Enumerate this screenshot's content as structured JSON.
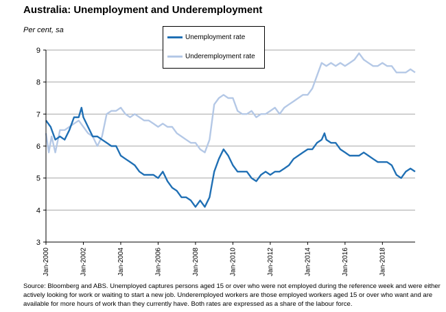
{
  "page": {
    "title": "Australia: Unemployment and Underemployment",
    "unit_label": "Per cent, sa",
    "source": "Source: Bloomberg and ABS.  Unemployed captures persons aged 15 or over who were not employed during the reference week and were either actively looking for work or waiting to start a new job.  Underemployed workers are those employed workers aged 15 or over who want and are available for more hours of work than they currently have.  Both rates are expressed as a share of the labour force."
  },
  "chart_data": {
    "type": "line",
    "title": "Australia: Unemployment and Underemployment",
    "ylabel": "Per cent, sa",
    "ylim": [
      3,
      9
    ],
    "yticks": [
      3,
      4,
      5,
      6,
      7,
      8,
      9
    ],
    "xlim": [
      2000.0,
      2019.75
    ],
    "xticks": [
      {
        "x": 2000,
        "label": "Jan-2000"
      },
      {
        "x": 2002,
        "label": "Jan-2002"
      },
      {
        "x": 2004,
        "label": "Jan-2004"
      },
      {
        "x": 2006,
        "label": "Jan-2006"
      },
      {
        "x": 2008,
        "label": "Jan-2008"
      },
      {
        "x": 2010,
        "label": "Jan-2010"
      },
      {
        "x": 2012,
        "label": "Jan-2012"
      },
      {
        "x": 2014,
        "label": "Jan-2014"
      },
      {
        "x": 2016,
        "label": "Jan-2016"
      },
      {
        "x": 2018,
        "label": "Jan-2018"
      }
    ],
    "grid": true,
    "legend_position": "top-center",
    "series": [
      {
        "name": "Unemployment rate",
        "color": "#1f6fb4",
        "width": 2.4,
        "points": [
          [
            2000.0,
            6.8
          ],
          [
            2000.25,
            6.6
          ],
          [
            2000.5,
            6.2
          ],
          [
            2000.75,
            6.3
          ],
          [
            2001.0,
            6.2
          ],
          [
            2001.25,
            6.5
          ],
          [
            2001.5,
            6.9
          ],
          [
            2001.75,
            6.9
          ],
          [
            2001.9,
            7.2
          ],
          [
            2002.0,
            6.9
          ],
          [
            2002.25,
            6.6
          ],
          [
            2002.5,
            6.3
          ],
          [
            2002.75,
            6.3
          ],
          [
            2003.0,
            6.2
          ],
          [
            2003.25,
            6.1
          ],
          [
            2003.5,
            6.0
          ],
          [
            2003.75,
            6.0
          ],
          [
            2004.0,
            5.7
          ],
          [
            2004.25,
            5.6
          ],
          [
            2004.5,
            5.5
          ],
          [
            2004.75,
            5.4
          ],
          [
            2005.0,
            5.2
          ],
          [
            2005.25,
            5.1
          ],
          [
            2005.5,
            5.1
          ],
          [
            2005.75,
            5.1
          ],
          [
            2006.0,
            5.0
          ],
          [
            2006.25,
            5.2
          ],
          [
            2006.5,
            4.9
          ],
          [
            2006.75,
            4.7
          ],
          [
            2007.0,
            4.6
          ],
          [
            2007.25,
            4.4
          ],
          [
            2007.5,
            4.4
          ],
          [
            2007.75,
            4.3
          ],
          [
            2008.0,
            4.1
          ],
          [
            2008.25,
            4.3
          ],
          [
            2008.5,
            4.1
          ],
          [
            2008.75,
            4.4
          ],
          [
            2009.0,
            5.2
          ],
          [
            2009.25,
            5.6
          ],
          [
            2009.5,
            5.9
          ],
          [
            2009.75,
            5.7
          ],
          [
            2010.0,
            5.4
          ],
          [
            2010.25,
            5.2
          ],
          [
            2010.5,
            5.2
          ],
          [
            2010.75,
            5.2
          ],
          [
            2011.0,
            5.0
          ],
          [
            2011.25,
            4.9
          ],
          [
            2011.5,
            5.1
          ],
          [
            2011.75,
            5.2
          ],
          [
            2012.0,
            5.1
          ],
          [
            2012.25,
            5.2
          ],
          [
            2012.5,
            5.2
          ],
          [
            2012.75,
            5.3
          ],
          [
            2013.0,
            5.4
          ],
          [
            2013.25,
            5.6
          ],
          [
            2013.5,
            5.7
          ],
          [
            2013.75,
            5.8
          ],
          [
            2014.0,
            5.9
          ],
          [
            2014.25,
            5.9
          ],
          [
            2014.5,
            6.1
          ],
          [
            2014.75,
            6.2
          ],
          [
            2014.9,
            6.4
          ],
          [
            2015.0,
            6.2
          ],
          [
            2015.25,
            6.1
          ],
          [
            2015.5,
            6.1
          ],
          [
            2015.75,
            5.9
          ],
          [
            2016.0,
            5.8
          ],
          [
            2016.25,
            5.7
          ],
          [
            2016.5,
            5.7
          ],
          [
            2016.75,
            5.7
          ],
          [
            2017.0,
            5.8
          ],
          [
            2017.25,
            5.7
          ],
          [
            2017.5,
            5.6
          ],
          [
            2017.75,
            5.5
          ],
          [
            2018.0,
            5.5
          ],
          [
            2018.25,
            5.5
          ],
          [
            2018.5,
            5.4
          ],
          [
            2018.75,
            5.1
          ],
          [
            2019.0,
            5.0
          ],
          [
            2019.25,
            5.2
          ],
          [
            2019.5,
            5.3
          ],
          [
            2019.75,
            5.2
          ]
        ]
      },
      {
        "name": "Underemployment rate",
        "color": "#b4c8e6",
        "width": 2.4,
        "points": [
          [
            2000.0,
            6.4
          ],
          [
            2000.15,
            5.8
          ],
          [
            2000.3,
            6.3
          ],
          [
            2000.5,
            5.8
          ],
          [
            2000.75,
            6.5
          ],
          [
            2001.0,
            6.5
          ],
          [
            2001.25,
            6.6
          ],
          [
            2001.5,
            6.7
          ],
          [
            2001.75,
            6.8
          ],
          [
            2002.0,
            6.6
          ],
          [
            2002.25,
            6.4
          ],
          [
            2002.5,
            6.3
          ],
          [
            2002.75,
            6.0
          ],
          [
            2003.0,
            6.3
          ],
          [
            2003.25,
            7.0
          ],
          [
            2003.5,
            7.1
          ],
          [
            2003.75,
            7.1
          ],
          [
            2004.0,
            7.2
          ],
          [
            2004.25,
            7.0
          ],
          [
            2004.5,
            6.9
          ],
          [
            2004.75,
            7.0
          ],
          [
            2005.0,
            6.9
          ],
          [
            2005.25,
            6.8
          ],
          [
            2005.5,
            6.8
          ],
          [
            2005.75,
            6.7
          ],
          [
            2006.0,
            6.6
          ],
          [
            2006.25,
            6.7
          ],
          [
            2006.5,
            6.6
          ],
          [
            2006.75,
            6.6
          ],
          [
            2007.0,
            6.4
          ],
          [
            2007.25,
            6.3
          ],
          [
            2007.5,
            6.2
          ],
          [
            2007.75,
            6.1
          ],
          [
            2008.0,
            6.1
          ],
          [
            2008.25,
            5.9
          ],
          [
            2008.5,
            5.8
          ],
          [
            2008.75,
            6.2
          ],
          [
            2009.0,
            7.3
          ],
          [
            2009.25,
            7.5
          ],
          [
            2009.5,
            7.6
          ],
          [
            2009.75,
            7.5
          ],
          [
            2010.0,
            7.5
          ],
          [
            2010.25,
            7.1
          ],
          [
            2010.5,
            7.0
          ],
          [
            2010.75,
            7.0
          ],
          [
            2011.0,
            7.1
          ],
          [
            2011.25,
            6.9
          ],
          [
            2011.5,
            7.0
          ],
          [
            2011.75,
            7.0
          ],
          [
            2012.0,
            7.1
          ],
          [
            2012.25,
            7.2
          ],
          [
            2012.5,
            7.0
          ],
          [
            2012.75,
            7.2
          ],
          [
            2013.0,
            7.3
          ],
          [
            2013.25,
            7.4
          ],
          [
            2013.5,
            7.5
          ],
          [
            2013.75,
            7.6
          ],
          [
            2014.0,
            7.6
          ],
          [
            2014.25,
            7.8
          ],
          [
            2014.5,
            8.2
          ],
          [
            2014.75,
            8.6
          ],
          [
            2015.0,
            8.5
          ],
          [
            2015.25,
            8.6
          ],
          [
            2015.5,
            8.5
          ],
          [
            2015.75,
            8.6
          ],
          [
            2016.0,
            8.5
          ],
          [
            2016.25,
            8.6
          ],
          [
            2016.5,
            8.7
          ],
          [
            2016.75,
            8.9
          ],
          [
            2017.0,
            8.7
          ],
          [
            2017.25,
            8.6
          ],
          [
            2017.5,
            8.5
          ],
          [
            2017.75,
            8.5
          ],
          [
            2018.0,
            8.6
          ],
          [
            2018.25,
            8.5
          ],
          [
            2018.5,
            8.5
          ],
          [
            2018.75,
            8.3
          ],
          [
            2019.0,
            8.3
          ],
          [
            2019.25,
            8.3
          ],
          [
            2019.5,
            8.4
          ],
          [
            2019.75,
            8.3
          ]
        ]
      }
    ]
  }
}
